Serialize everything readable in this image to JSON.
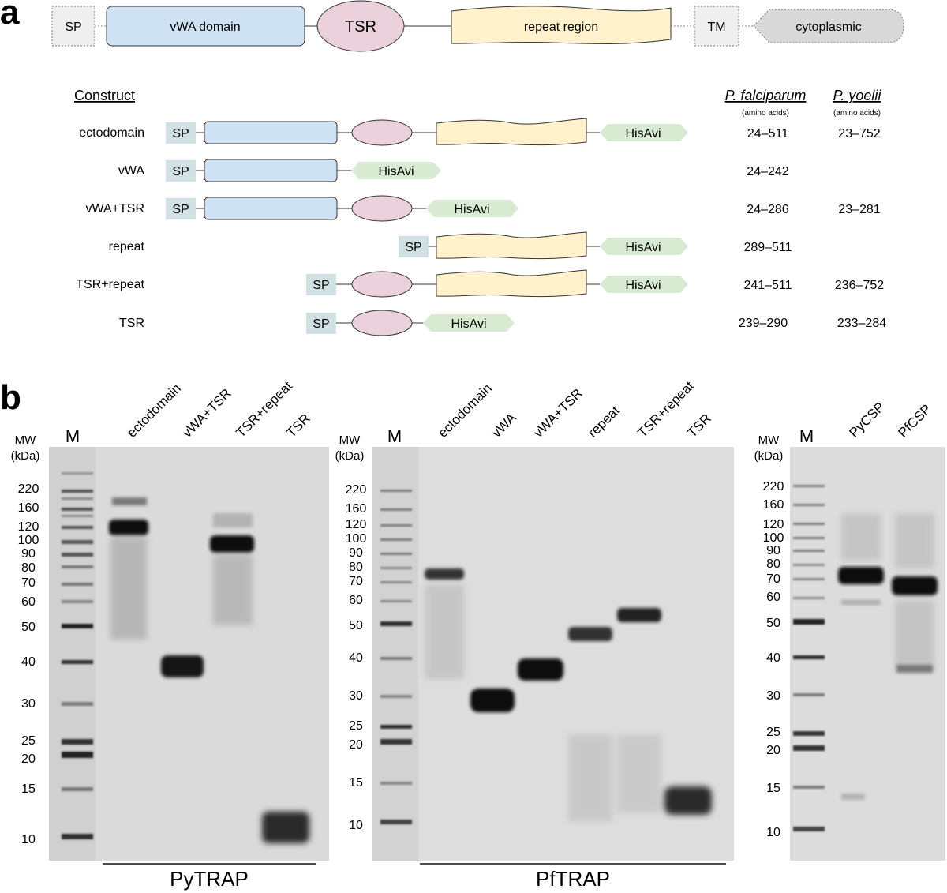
{
  "panel_a": {
    "letter": "a",
    "domain_bar": {
      "sp": "SP",
      "vwa": "vWA domain",
      "tsr": "TSR",
      "repeat": "repeat region",
      "tm": "TM",
      "cyto": "cytoplasmic"
    },
    "header": {
      "construct": "Construct",
      "pf": "P. falciparum",
      "py": "P. yoelii",
      "aa_note": "(amino acids)"
    },
    "tag_labels": {
      "sp": "SP",
      "hisavi": "HisAvi"
    },
    "constructs": [
      {
        "name": "ectodomain",
        "pf": "24–511",
        "py": "23–752"
      },
      {
        "name": "vWA",
        "pf": "24–242",
        "py": ""
      },
      {
        "name": "vWA+TSR",
        "pf": "24–286",
        "py": "23–281"
      },
      {
        "name": "repeat",
        "pf": "289–511",
        "py": ""
      },
      {
        "name": "TSR+repeat",
        "pf": "241–511",
        "py": "236–752"
      },
      {
        "name": "TSR",
        "pf": "239–290",
        "py": "233–284"
      }
    ]
  },
  "panel_b": {
    "letter": "b",
    "mw_label_1": "MW",
    "mw_label_2": "(kDa)",
    "marker_lane": "M",
    "gels": [
      {
        "label": "PyTRAP",
        "lanes": [
          "ectodomain",
          "vWA+TSR",
          "TSR+repeat",
          "TSR"
        ],
        "mw_ticks": [
          "220",
          "160",
          "120",
          "100",
          "90",
          "80",
          "70",
          "60",
          "50",
          "40",
          "30",
          "25",
          "20",
          "15",
          "10"
        ]
      },
      {
        "label": "PfTRAP",
        "lanes": [
          "ectodomain",
          "vWA",
          "vWA+TSR",
          "repeat",
          "TSR+repeat",
          "TSR"
        ],
        "mw_ticks": [
          "220",
          "160",
          "120",
          "100",
          "90",
          "80",
          "70",
          "60",
          "50",
          "40",
          "30",
          "25",
          "20",
          "15",
          "10"
        ]
      },
      {
        "label": "",
        "lanes": [
          "PyCSP",
          "PfCSP"
        ],
        "mw_ticks": [
          "220",
          "160",
          "120",
          "100",
          "90",
          "80",
          "70",
          "60",
          "50",
          "40",
          "30",
          "25",
          "20",
          "15",
          "10"
        ]
      }
    ]
  },
  "colors": {
    "vwa_fill": "#cfe2f3",
    "tsr_fill": "#ead1dc",
    "repeat_fill": "#fff2cc",
    "hisavi_fill": "#d9ead3",
    "sp_tag_fill": "#d0e0e3",
    "cyto_fill": "#d9d9d9",
    "gel_bg": "#dcdcdc",
    "band": "#111111"
  }
}
